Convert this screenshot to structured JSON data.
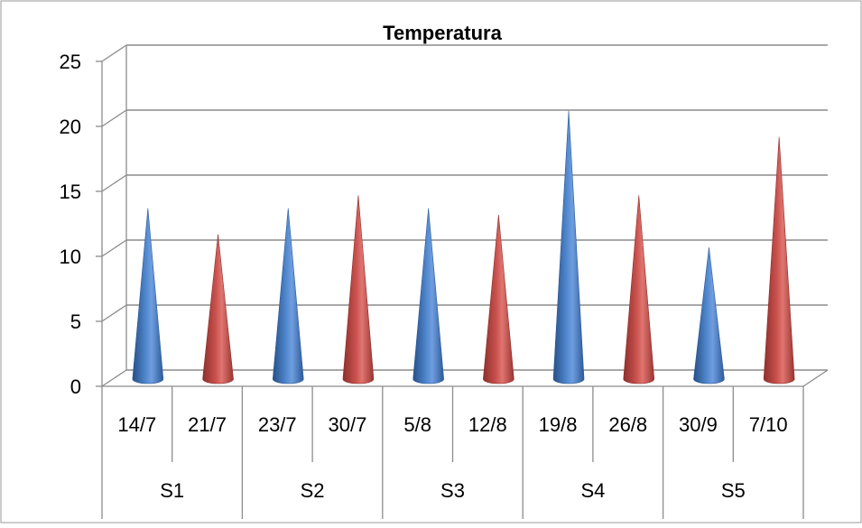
{
  "chart_data": {
    "type": "bar",
    "title": "Temperatura",
    "xlabel": "",
    "ylabel": "",
    "ylim": [
      0,
      25
    ],
    "yticks": [
      0,
      5,
      10,
      15,
      20,
      25
    ],
    "grid": true,
    "legend": "none",
    "style": "3d-cone",
    "categories": [
      "14/7",
      "21/7",
      "23/7",
      "30/7",
      "5/8",
      "12/8",
      "19/8",
      "26/8",
      "30/9",
      "7/10"
    ],
    "groups": [
      {
        "label": "S1",
        "span": 2
      },
      {
        "label": "S2",
        "span": 2
      },
      {
        "label": "S3",
        "span": 2
      },
      {
        "label": "S4",
        "span": 2
      },
      {
        "label": "S5",
        "span": 2
      }
    ],
    "values": [
      13,
      11,
      13,
      14,
      13,
      12.5,
      20.5,
      14,
      10,
      18.5
    ],
    "colors": [
      "#4a7ebb",
      "#c0504d",
      "#4a7ebb",
      "#c0504d",
      "#4a7ebb",
      "#c0504d",
      "#4a7ebb",
      "#c0504d",
      "#4a7ebb",
      "#c0504d"
    ]
  }
}
